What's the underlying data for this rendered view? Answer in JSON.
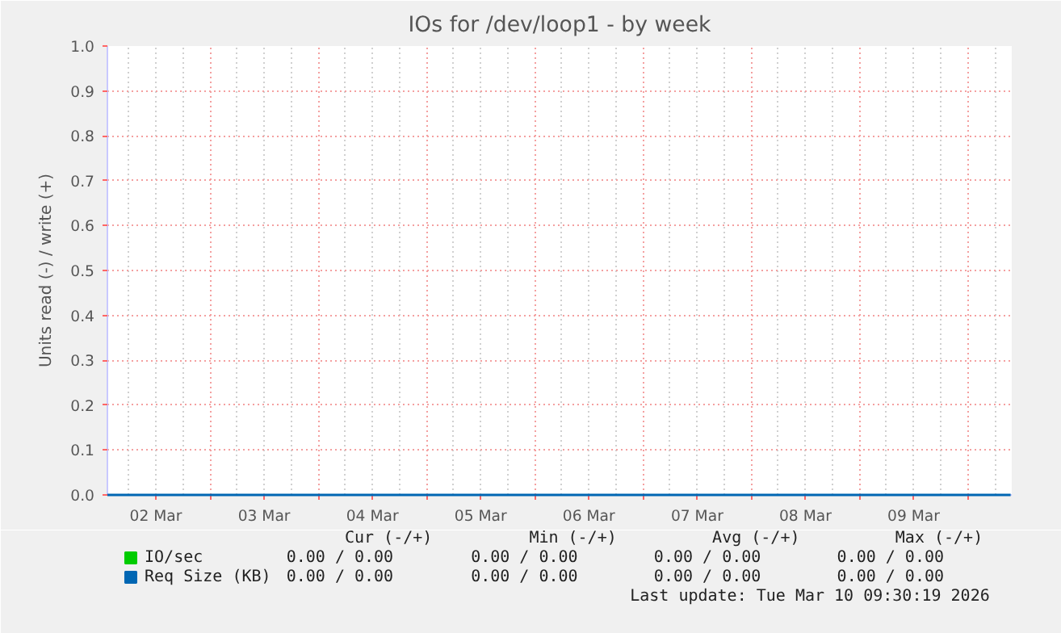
{
  "chart_data": {
    "type": "line",
    "title": "IOs for /dev/loop1 - by week",
    "ylabel": "Units read (-) / write (+)",
    "x": [
      "2026-03-02T01:15",
      "2026-03-10T09:30"
    ],
    "xlim": [
      "2026-03-02T01:15",
      "2026-03-10T09:45"
    ],
    "xticks": [
      {
        "value": "2026-03-02T12:00",
        "label": "02 Mar"
      },
      {
        "value": "2026-03-03T12:00",
        "label": "03 Mar"
      },
      {
        "value": "2026-03-04T12:00",
        "label": "04 Mar"
      },
      {
        "value": "2026-03-05T12:00",
        "label": "05 Mar"
      },
      {
        "value": "2026-03-06T12:00",
        "label": "06 Mar"
      },
      {
        "value": "2026-03-07T12:00",
        "label": "07 Mar"
      },
      {
        "value": "2026-03-08T12:00",
        "label": "08 Mar"
      },
      {
        "value": "2026-03-09T12:00",
        "label": "09 Mar"
      },
      {
        "value": "2026-03-03",
        "label": null
      },
      {
        "value": "2026-03-04",
        "label": null
      },
      {
        "value": "2026-03-05",
        "label": null
      },
      {
        "value": "2026-03-06",
        "label": null
      },
      {
        "value": "2026-03-07",
        "label": null
      },
      {
        "value": "2026-03-08",
        "label": null
      },
      {
        "value": "2026-03-09",
        "label": null
      },
      {
        "value": "2026-03-10",
        "label": null
      }
    ],
    "ylim": [
      0,
      1
    ],
    "yticks": [
      {
        "value": 0,
        "label": "0.0"
      },
      0.1,
      0.2,
      0.3,
      0.4,
      0.5,
      0.6,
      0.7,
      0.8,
      0.9,
      {
        "value": 1,
        "label": "1.0"
      }
    ],
    "series": [
      {
        "name": "IO/sec",
        "color": "#00cc00",
        "values": [
          null,
          null
        ]
      },
      {
        "name": "Req Size (KB)",
        "color": "#0066b3",
        "values": [
          0,
          0
        ]
      }
    ],
    "grid": true,
    "legend": "bottom",
    "annotations": [
      "Cur (-/+)",
      "Min (-/+)",
      "Avg (-/+)",
      "Max (-/+)",
      "0.00 /     0.00",
      "0.00 /     0.00",
      "0.00 /     0.00",
      "0.00 /     0.00",
      "0.00 /     0.00",
      "0.00 /     0.00",
      "0.00 /     0.00",
      "0.00 /     0.00",
      "Last update: Tue Mar 10 09:30:19 2026"
    ]
  }
}
